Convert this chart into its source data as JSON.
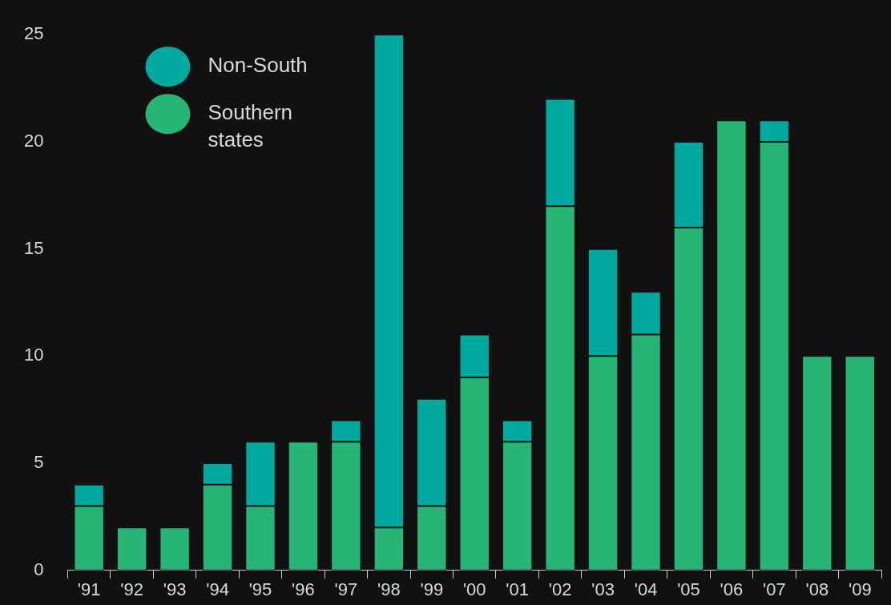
{
  "chart_data": {
    "type": "bar",
    "stacked": true,
    "legend": "top left",
    "grid": false,
    "categories": [
      "'91",
      "'92",
      "'93",
      "'94",
      "'95",
      "'96",
      "'97",
      "'98",
      "'99",
      "'00",
      "'01",
      "'02",
      "'03",
      "'04",
      "'05",
      "'06",
      "'07",
      "'08",
      "'09"
    ],
    "series": [
      {
        "name": "Southern states",
        "color": "#26b575",
        "values": [
          3,
          2,
          2,
          4,
          3,
          6,
          6,
          2,
          3,
          9,
          6,
          17,
          10,
          11,
          16,
          21,
          20,
          10,
          10
        ]
      },
      {
        "name": "Non-South",
        "color": "#00a99d",
        "values": [
          1,
          0,
          0,
          1,
          3,
          0,
          1,
          23,
          5,
          2,
          1,
          5,
          5,
          2,
          4,
          0,
          1,
          0,
          0
        ]
      }
    ],
    "ylim": [
      0,
      25
    ],
    "yticks": [
      0,
      5,
      10,
      15,
      20,
      25
    ]
  }
}
